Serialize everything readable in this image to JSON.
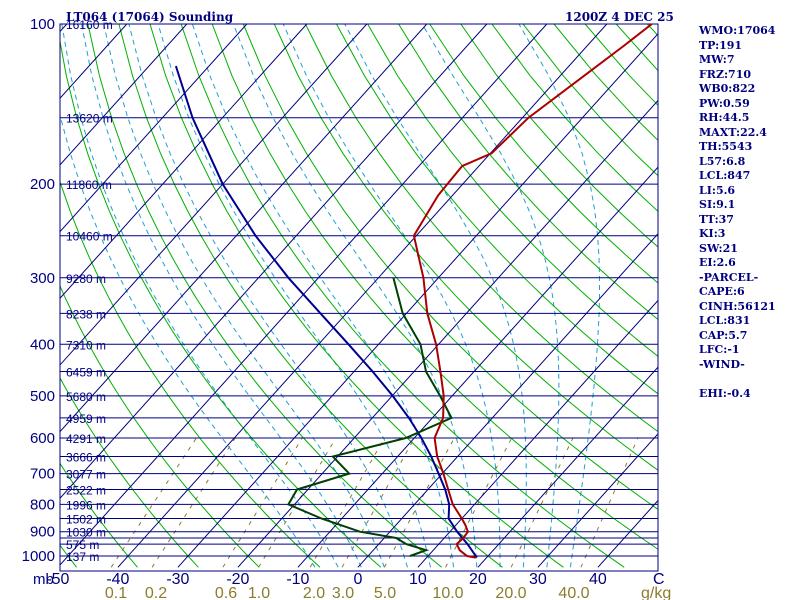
{
  "chart_data": {
    "type": "line",
    "subtype": "skew-t log-p sounding",
    "title": "LT064 (17064) Sounding",
    "time": "1200Z  4 DEC 25",
    "pressure_unit_label": "mb",
    "mixing_ratio_unit_label": "g/kg",
    "pressure_ticks": [
      100,
      200,
      300,
      400,
      500,
      600,
      700,
      800,
      900,
      1000
    ],
    "isobars": [
      100,
      150,
      200,
      250,
      300,
      350,
      400,
      450,
      500,
      550,
      600,
      650,
      700,
      750,
      800,
      850,
      900,
      925,
      950,
      1000
    ],
    "temperature_ticks": [
      -50,
      -40,
      -30,
      -20,
      -10,
      0,
      10,
      20,
      30,
      40
    ],
    "temperature_tick_labels": [
      "-50",
      "-40",
      "-30",
      "-20",
      "-10",
      "0",
      "10",
      "20",
      "30",
      "40"
    ],
    "temperature_axis_end_label": "C",
    "xlim": [
      -50,
      48
    ],
    "ylim": [
      1050,
      100
    ],
    "height_labels": [
      {
        "p": 100,
        "label": "16160 m"
      },
      {
        "p": 150,
        "label": "13620 m"
      },
      {
        "p": 200,
        "label": "11860 m"
      },
      {
        "p": 250,
        "label": "10460 m"
      },
      {
        "p": 300,
        "label": "9280 m"
      },
      {
        "p": 350,
        "label": "8238 m"
      },
      {
        "p": 400,
        "label": "7310 m"
      },
      {
        "p": 450,
        "label": "6459 m"
      },
      {
        "p": 500,
        "label": "5680 m"
      },
      {
        "p": 550,
        "label": "4959 m"
      },
      {
        "p": 600,
        "label": "4291 m"
      },
      {
        "p": 650,
        "label": "3666 m"
      },
      {
        "p": 700,
        "label": "3077 m"
      },
      {
        "p": 750,
        "label": "2522 m"
      },
      {
        "p": 800,
        "label": "1996 m"
      },
      {
        "p": 850,
        "label": "1502 m"
      },
      {
        "p": 900,
        "label": "1030 m"
      },
      {
        "p": 950,
        "label": "575 m"
      },
      {
        "p": 1000,
        "label": "137 m"
      }
    ],
    "mixing_ratio_lines": [
      0.1,
      0.2,
      0.6,
      1.0,
      2.0,
      3.0,
      5.0,
      10.0,
      20.0,
      40.0
    ],
    "mixing_ratio_labels": [
      "0.1",
      "0.2",
      "0.6",
      "1.0",
      "2.0",
      "3.0",
      "5.0",
      "10.0",
      "20.0",
      "40.0"
    ],
    "series": [
      {
        "name": "temperature",
        "color": "#aa0000",
        "points": [
          {
            "p": 1007,
            "t": 18.2
          },
          {
            "p": 1000,
            "t": 16.5
          },
          {
            "p": 975,
            "t": 14.4
          },
          {
            "p": 950,
            "t": 13.0
          },
          {
            "p": 925,
            "t": 13.2
          },
          {
            "p": 900,
            "t": 13.0
          },
          {
            "p": 875,
            "t": 11.6
          },
          {
            "p": 850,
            "t": 10.0
          },
          {
            "p": 800,
            "t": 6.4
          },
          {
            "p": 750,
            "t": 3.4
          },
          {
            "p": 700,
            "t": 0.2
          },
          {
            "p": 650,
            "t": -3.4
          },
          {
            "p": 600,
            "t": -6.6
          },
          {
            "p": 550,
            "t": -8.2
          },
          {
            "p": 500,
            "t": -11.4
          },
          {
            "p": 450,
            "t": -15.6
          },
          {
            "p": 400,
            "t": -20.4
          },
          {
            "p": 350,
            "t": -26.5
          },
          {
            "p": 300,
            "t": -32.5
          },
          {
            "p": 250,
            "t": -40.4
          },
          {
            "p": 210,
            "t": -42.4
          },
          {
            "p": 185,
            "t": -42.8
          },
          {
            "p": 175,
            "t": -39.8
          },
          {
            "p": 150,
            "t": -39.0
          },
          {
            "p": 125,
            "t": -36.0
          },
          {
            "p": 110,
            "t": -33.9
          },
          {
            "p": 100,
            "t": -32.5
          }
        ]
      },
      {
        "name": "dewpoint",
        "color": "#004000",
        "points": [
          {
            "p": 1000,
            "t": 7.0
          },
          {
            "p": 975,
            "t": 8.8
          },
          {
            "p": 950,
            "t": 4.6
          },
          {
            "p": 925,
            "t": 2.0
          },
          {
            "p": 900,
            "t": -5.0
          },
          {
            "p": 850,
            "t": -13.4
          },
          {
            "p": 800,
            "t": -21.0
          },
          {
            "p": 750,
            "t": -21.8
          },
          {
            "p": 700,
            "t": -15.5
          },
          {
            "p": 650,
            "t": -20.8
          },
          {
            "p": 600,
            "t": -11.4
          },
          {
            "p": 550,
            "t": -6.8
          },
          {
            "p": 500,
            "t": -12.0
          },
          {
            "p": 450,
            "t": -18.0
          },
          {
            "p": 400,
            "t": -23.0
          },
          {
            "p": 350,
            "t": -30.6
          },
          {
            "p": 300,
            "t": -37.5
          }
        ]
      },
      {
        "name": "parcel",
        "color": "#000090",
        "points": [
          {
            "p": 1007,
            "t": 18.4
          },
          {
            "p": 950,
            "t": 14.8
          },
          {
            "p": 900,
            "t": 11.2
          },
          {
            "p": 850,
            "t": 7.8
          },
          {
            "p": 800,
            "t": 5.8
          },
          {
            "p": 750,
            "t": 2.9
          },
          {
            "p": 700,
            "t": -0.6
          },
          {
            "p": 650,
            "t": -4.4
          },
          {
            "p": 600,
            "t": -8.8
          },
          {
            "p": 550,
            "t": -13.9
          },
          {
            "p": 500,
            "t": -19.9
          },
          {
            "p": 450,
            "t": -26.9
          },
          {
            "p": 400,
            "t": -35.0
          },
          {
            "p": 350,
            "t": -44.3
          },
          {
            "p": 300,
            "t": -55.0
          },
          {
            "p": 250,
            "t": -66.8
          },
          {
            "p": 200,
            "t": -80.0
          },
          {
            "p": 150,
            "t": -95.0
          },
          {
            "p": 120,
            "t": -105.5
          }
        ]
      }
    ],
    "indices": [
      "WMO:17064",
      "TP:191",
      "MW:7",
      "FRZ:710",
      "WB0:822",
      "PW:0.59",
      "RH:44.5",
      "MAXT:22.4",
      "TH:5543",
      "L57:6.8",
      "LCL:847",
      "LI:5.6",
      "SI:9.1",
      "TT:37",
      "KI:3",
      "SW:21",
      "EI:2.6",
      "-PARCEL-",
      "CAPE:6",
      "CINH:56121",
      "LCL:831",
      "CAP:5.7",
      "LFC:-1",
      "-WIND-",
      "",
      "EHI:-0.4"
    ],
    "colors": {
      "axes": "#000080",
      "isobar": "#000080",
      "isotherm": "#000080",
      "dry_adiabat": "#00b000",
      "moist_adiabat": "#20a0d0",
      "mixing_ratio": "#8b7d2a",
      "temperature": "#aa0000",
      "dewpoint": "#004000",
      "parcel": "#000090",
      "background": "#ffffff"
    }
  }
}
